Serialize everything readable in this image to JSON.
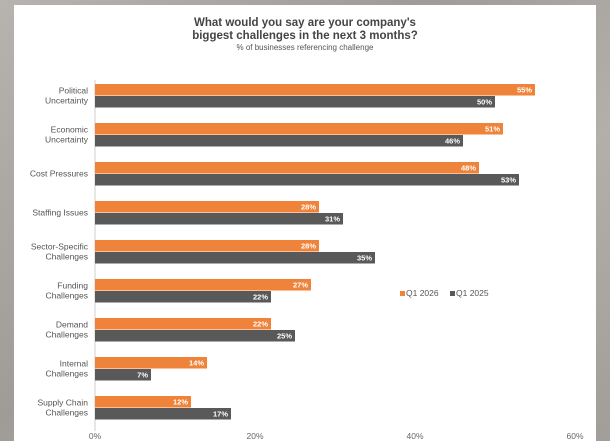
{
  "chart_data": {
    "type": "bar",
    "orientation": "horizontal",
    "title_line1": "What would you say are your company's",
    "title_line2": "biggest challenges in the next 3 months?",
    "subtitle": "% of businesses referencing challenge",
    "categories": [
      [
        "Political",
        "Uncertainty"
      ],
      [
        "Economic",
        "Uncertainty"
      ],
      [
        "Cost Pressures"
      ],
      [
        "Staffing Issues"
      ],
      [
        "Sector-Specific",
        "Challenges"
      ],
      [
        "Funding",
        "Challenges"
      ],
      [
        "Demand",
        "Challenges"
      ],
      [
        "Internal",
        "Challenges"
      ],
      [
        "Supply Chain",
        "Challenges"
      ]
    ],
    "series": [
      {
        "name": "Q1 2026",
        "color": "#f0833a",
        "values": [
          55,
          51,
          48,
          28,
          28,
          27,
          22,
          14,
          12
        ]
      },
      {
        "name": "Q1 2025",
        "color": "#595959",
        "values": [
          50,
          46,
          53,
          31,
          35,
          22,
          25,
          7,
          17
        ]
      }
    ],
    "value_suffix": "%",
    "xlim": [
      0,
      60
    ],
    "xticks": [
      "0%",
      "20%",
      "40%",
      "60%"
    ],
    "legend_position": "right-middle",
    "grid": false
  }
}
